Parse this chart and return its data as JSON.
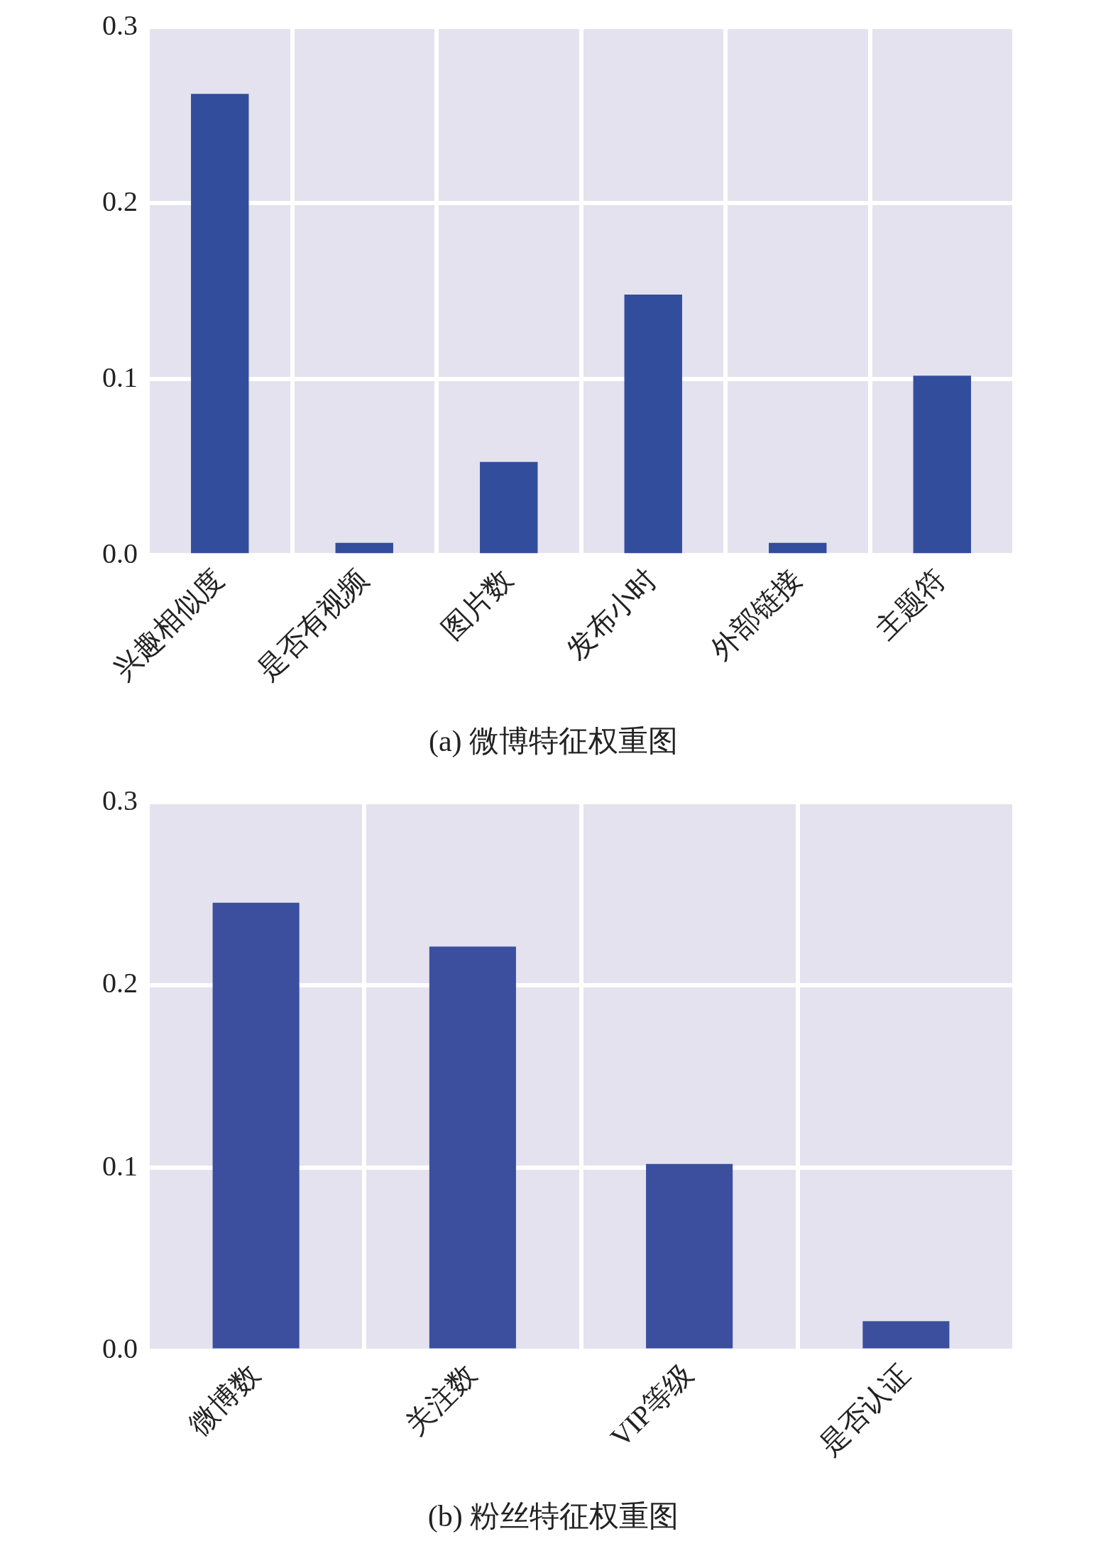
{
  "chart_data": [
    {
      "type": "bar",
      "title": "(a) 微博特征权重图",
      "categories": [
        "兴趣相似度",
        "是否有视频",
        "图片数",
        "发布小时",
        "外部链接",
        "主题符"
      ],
      "values": [
        0.262,
        0.007,
        0.053,
        0.148,
        0.007,
        0.102
      ],
      "color": "#324d9c",
      "ylim": [
        0,
        0.3
      ],
      "yticks": [
        {
          "value": 0,
          "label": "0.0"
        },
        {
          "value": 0.1,
          "label": "0.1"
        },
        {
          "value": 0.2,
          "label": "0.2"
        },
        {
          "value": 0.3,
          "label": "0.3"
        }
      ],
      "grid": true
    },
    {
      "type": "bar",
      "title": "(b) 粉丝特征权重图",
      "categories": [
        "微博数",
        "关注数",
        "VIP等级",
        "是否认证"
      ],
      "values": [
        0.245,
        0.221,
        0.102,
        0.016
      ],
      "color": "#3b4f9e",
      "ylim": [
        0,
        0.3
      ],
      "yticks": [
        {
          "value": 0,
          "label": "0.0"
        },
        {
          "value": 0.1,
          "label": "0.1"
        },
        {
          "value": 0.2,
          "label": "0.2"
        },
        {
          "value": 0.3,
          "label": "0.3"
        }
      ],
      "grid": true
    }
  ]
}
